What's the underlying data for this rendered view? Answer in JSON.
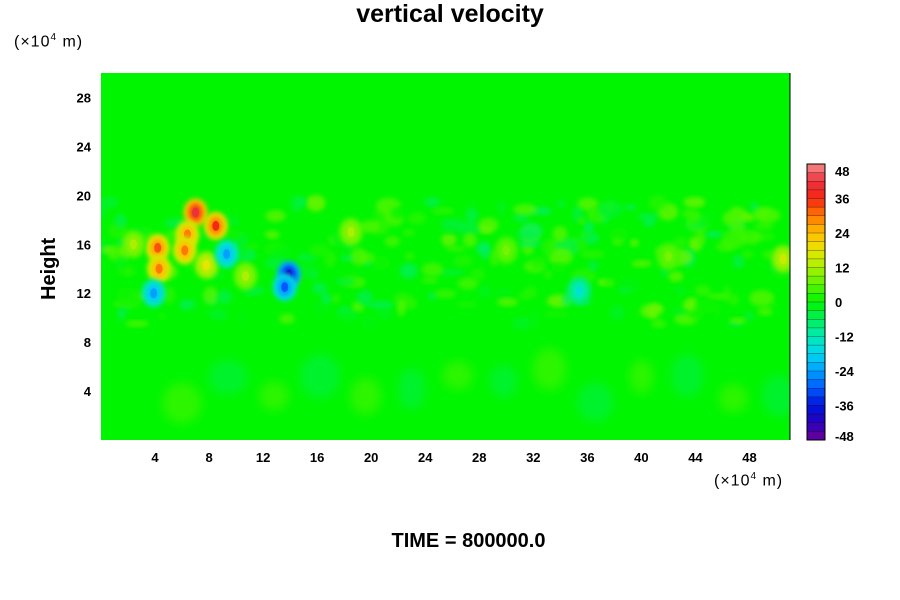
{
  "chart_data": {
    "type": "heatmap",
    "title": "vertical velocity",
    "ylabel": "Height",
    "y_unit": {
      "prefix": "(×10",
      "exp": "4",
      "suffix": " m)"
    },
    "x_unit": {
      "prefix": "(×10",
      "exp": "4",
      "suffix": " m)"
    },
    "xlim": [
      0,
      51
    ],
    "ylim": [
      0,
      30
    ],
    "x_ticks": [
      4,
      8,
      12,
      16,
      20,
      24,
      28,
      32,
      36,
      40,
      44,
      48
    ],
    "y_ticks": [
      4,
      8,
      12,
      16,
      20,
      24,
      28
    ],
    "colorbar": {
      "range": [
        -48,
        48
      ],
      "step": 3,
      "ticks": [
        48,
        36,
        24,
        12,
        0,
        -12,
        -24,
        -36,
        -48
      ]
    },
    "background_value": 0,
    "features": [
      {
        "x": 7.0,
        "y": 18.6,
        "value": 42
      },
      {
        "x": 8.5,
        "y": 17.5,
        "value": 36
      },
      {
        "x": 6.4,
        "y": 16.8,
        "value": 30
      },
      {
        "x": 4.2,
        "y": 15.7,
        "value": 33
      },
      {
        "x": 6.2,
        "y": 15.5,
        "value": 30
      },
      {
        "x": 4.3,
        "y": 14.0,
        "value": 30
      },
      {
        "x": 7.8,
        "y": 14.3,
        "value": 18
      },
      {
        "x": 9.3,
        "y": 15.2,
        "value": -24
      },
      {
        "x": 3.9,
        "y": 12.0,
        "value": -24
      },
      {
        "x": 13.9,
        "y": 13.5,
        "value": -42
      },
      {
        "x": 13.6,
        "y": 12.5,
        "value": -30
      },
      {
        "x": 2.4,
        "y": 16.0,
        "value": 12
      },
      {
        "x": 10.7,
        "y": 13.4,
        "value": 12
      },
      {
        "x": 18.5,
        "y": 17.0,
        "value": 12
      },
      {
        "x": 35.4,
        "y": 12.2,
        "value": -15
      },
      {
        "x": 50.5,
        "y": 14.8,
        "value": 15
      },
      {
        "x": 30.0,
        "y": 15.5,
        "value": 8
      },
      {
        "x": 42.0,
        "y": 15.0,
        "value": 8
      }
    ],
    "grid": false
  },
  "footer": {
    "time_label": "TIME = 800000.0"
  }
}
